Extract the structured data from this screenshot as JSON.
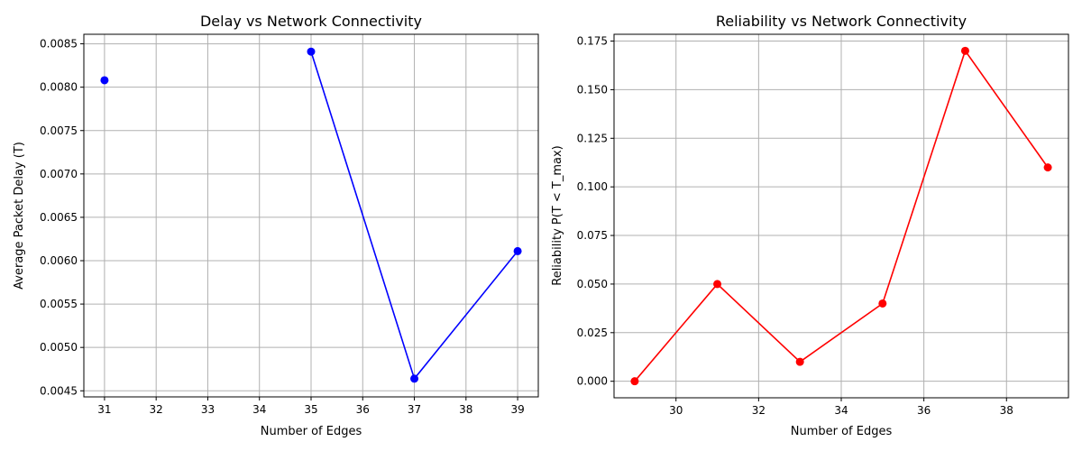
{
  "chart_data": [
    {
      "type": "line",
      "title": "Delay vs Network Connectivity",
      "xlabel": "Number of Edges",
      "ylabel": "Average Packet Delay (T)",
      "xlim": [
        30.6,
        39.4
      ],
      "ylim": [
        0.00443,
        0.00861
      ],
      "xticks": [
        31,
        32,
        33,
        34,
        35,
        36,
        37,
        38,
        39
      ],
      "yticks": [
        0.0045,
        0.005,
        0.0055,
        0.006,
        0.0065,
        0.007,
        0.0075,
        0.008,
        0.0085
      ],
      "xtick_labels": [
        "31",
        "32",
        "33",
        "34",
        "35",
        "36",
        "37",
        "38",
        "39"
      ],
      "ytick_labels": [
        "0.0045",
        "0.0050",
        "0.0055",
        "0.0060",
        "0.0065",
        "0.0070",
        "0.0075",
        "0.0080",
        "0.0085"
      ],
      "grid": true,
      "series": [
        {
          "color": "#0000ff",
          "marker": "circle",
          "points": [
            {
              "x": 31,
              "y": 0.00808
            },
            {
              "x": 33,
              "y": null
            },
            {
              "x": 35,
              "y": 0.00841
            },
            {
              "x": 37,
              "y": 0.00464
            },
            {
              "x": 39,
              "y": 0.00611
            }
          ]
        }
      ]
    },
    {
      "type": "line",
      "title": "Reliability vs Network Connectivity",
      "xlabel": "Number of Edges",
      "ylabel": "Reliability P(T < T_max)",
      "xlim": [
        28.5,
        39.5
      ],
      "ylim": [
        -0.0085,
        0.1785
      ],
      "xticks": [
        30,
        32,
        34,
        36,
        38
      ],
      "yticks": [
        0,
        0.025,
        0.05,
        0.075,
        0.1,
        0.125,
        0.15,
        0.175
      ],
      "xtick_labels": [
        "30",
        "32",
        "34",
        "36",
        "38"
      ],
      "ytick_labels": [
        "0.000",
        "0.025",
        "0.050",
        "0.075",
        "0.100",
        "0.125",
        "0.150",
        "0.175"
      ],
      "grid": true,
      "series": [
        {
          "color": "#ff0000",
          "marker": "circle",
          "points": [
            {
              "x": 29,
              "y": 0.0
            },
            {
              "x": 31,
              "y": 0.05
            },
            {
              "x": 33,
              "y": 0.01
            },
            {
              "x": 35,
              "y": 0.04
            },
            {
              "x": 37,
              "y": 0.17
            },
            {
              "x": 39,
              "y": 0.11
            }
          ]
        }
      ]
    }
  ]
}
